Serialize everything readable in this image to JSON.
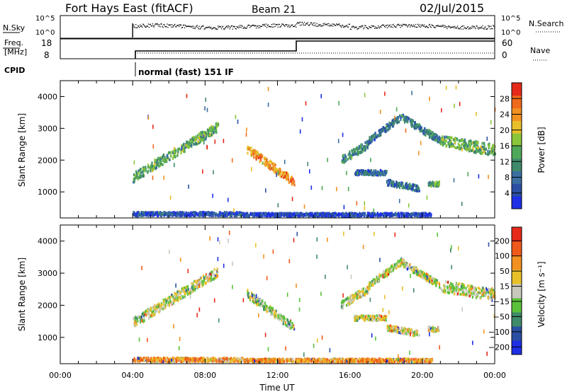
{
  "header": {
    "station": "Fort Hays East (fitACF)",
    "beam": "Beam 21",
    "date": "02/Jul/2015"
  },
  "params": {
    "nsky_label": "N.Sky",
    "nsky_ticks": [
      "10^5",
      "10^0"
    ],
    "nsearch_label": "N.Search",
    "nsearch_ticks": [
      "10^5",
      "10^0"
    ],
    "freq_label_1": "Freq.",
    "freq_label_2": "[MHz]",
    "freq_ticks": [
      "18",
      "8"
    ],
    "nave_label": "Nave",
    "nave_ticks": [
      "60",
      "0"
    ],
    "cpid_label": "CPID",
    "cpid_text": "normal (fast) 151 IF"
  },
  "colors": {
    "power": [
      "#1e2fe6",
      "#2a4fa3",
      "#3a6fa0",
      "#3f8a6a",
      "#4fa85a",
      "#8ac63a",
      "#e8c02a",
      "#f29020",
      "#ef6a1a",
      "#e62a1a"
    ],
    "velocity": [
      "#1e2fe6",
      "#2a4fa3",
      "#3f8a6a",
      "#5cc23a",
      "#c8c8bc",
      "#e8c02a",
      "#f29020",
      "#ef5a1a",
      "#e62a1a"
    ]
  },
  "chart_data": [
    {
      "type": "heatmap",
      "name": "power",
      "ylabel": "Slant Range [km]",
      "yticks": [
        "1000",
        "2000",
        "3000",
        "4000"
      ],
      "ylim": [
        180,
        4500
      ],
      "xlim": [
        0,
        24
      ],
      "colorbar_label": "Power [dB]",
      "colorbar_ticks": [
        "4",
        "8",
        "12",
        "16",
        "20",
        "24",
        "28"
      ],
      "colorbar_range": [
        0,
        32
      ],
      "bands": [
        {
          "t0": 4.0,
          "t1": 8.7,
          "r0": 1450,
          "r1": 3050,
          "w": 300,
          "lvl": 0.45
        },
        {
          "t0": 10.3,
          "t1": 12.9,
          "r0": 2350,
          "r1": 1300,
          "w": 260,
          "lvl": 0.75
        },
        {
          "t0": 15.5,
          "t1": 17.0,
          "r0": 2000,
          "r1": 2500,
          "w": 250,
          "lvl": 0.35
        },
        {
          "t0": 17.0,
          "t1": 18.8,
          "r0": 2600,
          "r1": 3350,
          "w": 200,
          "lvl": 0.25
        },
        {
          "t0": 18.8,
          "t1": 21.0,
          "r0": 3350,
          "r1": 2600,
          "w": 220,
          "lvl": 0.3
        },
        {
          "t0": 21.0,
          "t1": 24.0,
          "r0": 2600,
          "r1": 2300,
          "w": 350,
          "lvl": 0.45
        },
        {
          "t0": 16.2,
          "t1": 18.0,
          "r0": 1600,
          "r1": 1600,
          "w": 150,
          "lvl": 0.2
        },
        {
          "t0": 18.0,
          "t1": 19.8,
          "r0": 1300,
          "r1": 1100,
          "w": 180,
          "lvl": 0.25
        },
        {
          "t0": 20.3,
          "t1": 20.9,
          "r0": 1250,
          "r1": 1250,
          "w": 150,
          "lvl": 0.4
        },
        {
          "t0": 4.0,
          "t1": 10.0,
          "r0": 300,
          "r1": 300,
          "w": 120,
          "lvl": 0.15
        },
        {
          "t0": 10.0,
          "t1": 20.5,
          "r0": 280,
          "r1": 280,
          "w": 100,
          "lvl": 0.1
        }
      ]
    },
    {
      "type": "heatmap",
      "name": "velocity",
      "ylabel": "Slant Range [km]",
      "yticks": [
        "1000",
        "2000",
        "3000",
        "4000"
      ],
      "ylim": [
        180,
        4500
      ],
      "xlim": [
        0,
        24
      ],
      "xticks": [
        "00:00",
        "04:00",
        "08:00",
        "12:00",
        "16:00",
        "20:00",
        "00:00"
      ],
      "xlabel": "Time UT",
      "colorbar_label": "Velocity [m s⁻¹]",
      "colorbar_ticks": [
        "200",
        "100",
        "50",
        "15",
        "−15",
        "−50",
        "−100",
        "−200"
      ],
      "bands": [
        {
          "t0": 4.0,
          "t1": 8.7,
          "r0": 1450,
          "r1": 3050,
          "w": 300,
          "lvl": 0.5
        },
        {
          "t0": 10.3,
          "t1": 12.9,
          "r0": 2350,
          "r1": 1300,
          "w": 260,
          "lvl": 0.45
        },
        {
          "t0": 15.5,
          "t1": 17.0,
          "r0": 2000,
          "r1": 2500,
          "w": 250,
          "lvl": 0.5
        },
        {
          "t0": 17.0,
          "t1": 18.8,
          "r0": 2600,
          "r1": 3350,
          "w": 200,
          "lvl": 0.5
        },
        {
          "t0": 18.8,
          "t1": 21.0,
          "r0": 3350,
          "r1": 2600,
          "w": 220,
          "lvl": 0.5
        },
        {
          "t0": 21.0,
          "t1": 24.0,
          "r0": 2600,
          "r1": 2300,
          "w": 350,
          "lvl": 0.5
        },
        {
          "t0": 16.2,
          "t1": 18.0,
          "r0": 1600,
          "r1": 1600,
          "w": 150,
          "lvl": 0.5
        },
        {
          "t0": 18.0,
          "t1": 19.8,
          "r0": 1300,
          "r1": 1100,
          "w": 180,
          "lvl": 0.55
        },
        {
          "t0": 20.3,
          "t1": 20.9,
          "r0": 1250,
          "r1": 1250,
          "w": 150,
          "lvl": 0.5
        },
        {
          "t0": 4.0,
          "t1": 10.0,
          "r0": 300,
          "r1": 300,
          "w": 120,
          "lvl": 0.7
        },
        {
          "t0": 10.0,
          "t1": 20.5,
          "r0": 280,
          "r1": 280,
          "w": 100,
          "lvl": 0.7
        }
      ]
    }
  ]
}
